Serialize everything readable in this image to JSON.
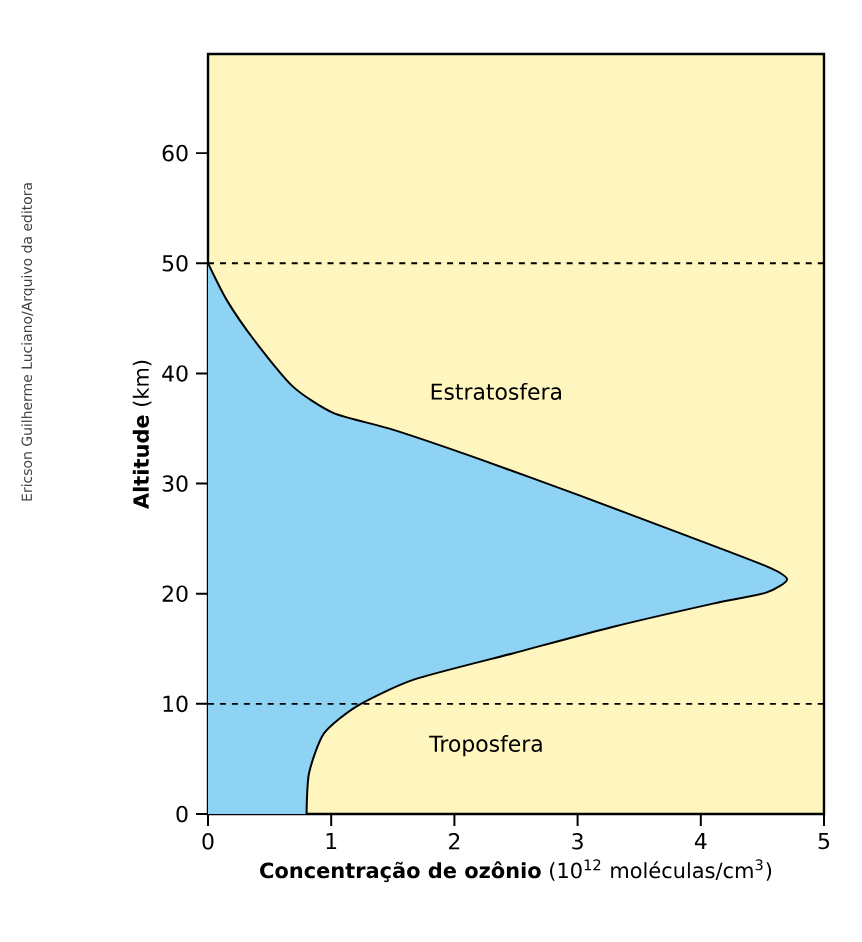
{
  "chart_data": {
    "type": "area",
    "xlabel": "**Concentração de ozônio** (10$^{12}$ moléculas/cm$^{3}$)",
    "ylabel": "**Altitude** (km)",
    "series": [
      {
        "color": "#8fd3f4",
        "x": [
          0.8,
          0.82,
          0.94,
          1.21,
          1.67,
          2.48,
          3.29,
          4.1,
          4.53,
          4.7,
          4.53,
          3.83,
          3.02,
          2.21,
          1.5,
          1.02,
          0.69,
          0.37,
          0.15,
          0
        ],
        "values": [
          0,
          3.7,
          7.3,
          9.8,
          12.2,
          14.6,
          17.0,
          19.1,
          20.1,
          21.3,
          22.5,
          25.5,
          28.9,
          32.2,
          34.9,
          36.4,
          38.8,
          43.1,
          46.7,
          50
        ]
      }
    ],
    "xlim": [
      0,
      5
    ],
    "ylim": [
      0,
      69
    ],
    "xticks": [
      0,
      1,
      2,
      3,
      4,
      5
    ],
    "yticks": [
      0,
      10,
      20,
      30,
      40,
      50,
      60
    ],
    "ref_lines": [
      {
        "axis": "y",
        "value": 10,
        "line_style": "dashed"
      },
      {
        "axis": "y",
        "value": 50,
        "line_style": "dashed"
      }
    ],
    "annotations": [
      "Estratosfera",
      "Troposfera",
      "Ericson Guilherme Luciano/Arquivo da editora"
    ],
    "grid": false
  }
}
